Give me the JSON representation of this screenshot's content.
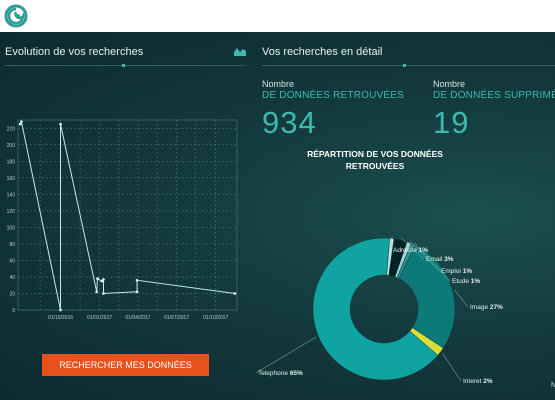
{
  "left_panel": {
    "title": "Evolution de vos recherches"
  },
  "right_panel": {
    "title": "Vos recherches en détail",
    "found": {
      "label": "Nombre",
      "sublabel": "DE DONNÉES RETROUVÉES",
      "value": "934"
    },
    "deleted": {
      "label": "Nombre",
      "sublabel": "DE DONNÉES SUPPRIMÉES",
      "value": "19"
    },
    "donut_title_line1": "RÉPARTITION DE VOS DONNÉES",
    "donut_title_line2": "RETROUVÉES"
  },
  "search_button": {
    "label": "RECHERCHER MES DONNÉES"
  },
  "edge_text": "N",
  "colors": {
    "accent": "#3fb8b0",
    "button": "#e8501c",
    "teal_dark": "#0b7a78",
    "teal_main": "#0fa3a1",
    "yellow": "#d7de3a"
  },
  "icons": {
    "logo": "swirl-logo-icon",
    "chart": "area-chart-icon"
  },
  "chart_data": [
    {
      "type": "line",
      "title": "",
      "y_ticks": [
        0,
        20,
        40,
        60,
        80,
        100,
        120,
        140,
        160,
        180,
        200,
        220
      ],
      "ylim": [
        0,
        230
      ],
      "x_tick_labels": [
        "01/10/2016",
        "01/01/2017",
        "01/04/2017",
        "01/07/2017",
        "01/10/2017"
      ],
      "x_tick_days": [
        0,
        92,
        182,
        273,
        365
      ],
      "xlim": [
        -100,
        415
      ],
      "points": [
        {
          "x": -95,
          "y": 225
        },
        {
          "x": -92,
          "y": 228
        },
        {
          "x": 0,
          "y": 0
        },
        {
          "x": 0,
          "y": 225
        },
        {
          "x": 85,
          "y": 22
        },
        {
          "x": 87,
          "y": 38
        },
        {
          "x": 97,
          "y": 35
        },
        {
          "x": 101,
          "y": 37
        },
        {
          "x": 101,
          "y": 20
        },
        {
          "x": 180,
          "y": 22
        },
        {
          "x": 180,
          "y": 36
        },
        {
          "x": 410,
          "y": 20
        }
      ],
      "grid": true
    },
    {
      "type": "pie",
      "donut": true,
      "slices": [
        {
          "label": "Telephone",
          "pct_label": "65%",
          "value": 65,
          "color": "#0fa3a1"
        },
        {
          "label": "Adresse",
          "pct_label": "1%",
          "value": 1,
          "color": "#bde3df"
        },
        {
          "label": "Email",
          "pct_label": "3%",
          "value": 3,
          "color": "#062225"
        },
        {
          "label": "Emploi",
          "pct_label": "1%",
          "value": 1,
          "color": "#9fd5d0"
        },
        {
          "label": "Etude",
          "pct_label": "1%",
          "value": 1,
          "color": "#2c8f8a"
        },
        {
          "label": "Image",
          "pct_label": "27%",
          "value": 27,
          "color": "#0b7a78"
        },
        {
          "label": "Interet",
          "pct_label": "2%",
          "value": 2,
          "color": "#d7de3a"
        }
      ]
    }
  ]
}
